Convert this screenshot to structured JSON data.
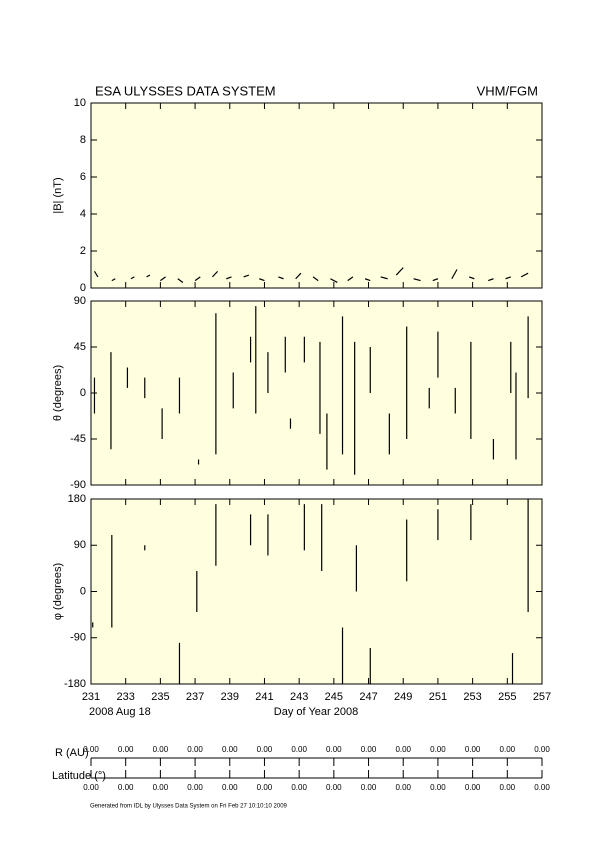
{
  "chart_data": [
    {
      "type": "line",
      "title": "ESA ULYSSES DATA SYSTEM",
      "subtitle": "VHM/FGM",
      "ylabel": "|B| (nT)",
      "background": "#ffffe0",
      "xlim": [
        231,
        257
      ],
      "ylim": [
        0,
        10
      ],
      "yticks": [
        0,
        2,
        4,
        6,
        8,
        10
      ],
      "x": [
        231.2,
        231.4,
        231.4,
        232.2,
        232.4,
        232.4,
        233.3,
        233.5,
        233.5,
        234.2,
        234.4,
        234.4,
        235.0,
        235.3,
        235.3,
        236.0,
        236.3,
        236.3,
        237.0,
        237.3,
        237.3,
        238.0,
        238.3,
        238.3,
        238.8,
        239.1,
        239.1,
        239.8,
        240.1,
        240.1,
        240.7,
        241.0,
        241.0,
        241.8,
        242.1,
        242.1,
        242.8,
        243.1,
        243.1,
        243.8,
        244.1,
        244.1,
        244.8,
        245.2,
        245.2,
        245.8,
        246.1,
        246.1,
        246.8,
        247.1,
        247.1,
        247.7,
        248.1,
        248.1,
        248.6,
        249.0,
        249.0,
        249.6,
        250.0,
        250.0,
        250.7,
        251.0,
        251.0,
        251.8,
        252.1,
        252.1,
        252.8,
        253.1,
        253.1,
        253.9,
        254.2,
        254.2,
        254.9,
        255.2,
        255.2,
        255.8,
        256.2
      ],
      "series": [
        {
          "name": "|B|",
          "color": "#000000",
          "values": [
            0.9,
            0.6,
            null,
            0.4,
            0.5,
            null,
            0.5,
            0.6,
            null,
            0.6,
            0.7,
            null,
            0.4,
            0.6,
            null,
            0.5,
            0.3,
            null,
            0.4,
            0.6,
            null,
            0.6,
            0.9,
            null,
            0.5,
            0.6,
            null,
            0.6,
            0.7,
            null,
            0.5,
            0.4,
            null,
            0.6,
            0.5,
            null,
            0.5,
            0.8,
            null,
            0.6,
            0.4,
            null,
            0.5,
            0.3,
            null,
            0.4,
            0.6,
            null,
            0.5,
            0.4,
            null,
            0.6,
            0.5,
            null,
            0.7,
            1.1,
            null,
            0.5,
            0.4,
            null,
            0.4,
            0.5,
            null,
            0.5,
            1.0,
            null,
            0.6,
            0.5,
            null,
            0.4,
            0.5,
            null,
            0.5,
            0.6,
            null,
            0.6,
            0.8
          ]
        }
      ]
    },
    {
      "type": "line",
      "ylabel": "θ (degrees)",
      "background": "#ffffe0",
      "xlim": [
        231,
        257
      ],
      "ylim": [
        -90,
        90
      ],
      "yticks": [
        -90,
        -45,
        0,
        45,
        90
      ],
      "x": [
        231.2,
        231.2,
        231.2,
        232.15,
        232.15,
        232.15,
        233.1,
        233.1,
        233.1,
        234.1,
        234.1,
        234.1,
        235.1,
        235.1,
        235.1,
        236.1,
        236.1,
        236.1,
        237.2,
        237.2,
        237.2,
        238.2,
        238.2,
        238.2,
        239.2,
        239.2,
        239.2,
        240.2,
        240.2,
        240.2,
        240.5,
        240.5,
        240.5,
        241.2,
        241.2,
        241.2,
        242.2,
        242.2,
        242.2,
        242.5,
        242.5,
        242.5,
        243.3,
        243.3,
        243.3,
        244.2,
        244.2,
        244.2,
        244.6,
        244.6,
        244.6,
        245.5,
        245.5,
        245.5,
        246.2,
        246.2,
        246.2,
        247.1,
        247.1,
        247.1,
        248.2,
        248.2,
        248.2,
        249.2,
        249.2,
        249.2,
        250.5,
        250.5,
        250.5,
        251.0,
        251.0,
        251.0,
        252.0,
        252.0,
        252.0,
        252.9,
        252.9,
        252.9,
        254.2,
        254.2,
        254.2,
        255.2,
        255.2,
        255.2,
        255.5,
        255.5,
        255.5,
        256.2,
        256.2
      ],
      "series": [
        {
          "name": "θ",
          "color": "#000000",
          "values": [
            -20,
            15,
            null,
            -55,
            40,
            null,
            5,
            25,
            null,
            -5,
            15,
            null,
            -45,
            -15,
            null,
            -20,
            15,
            null,
            -70,
            -65,
            null,
            -60,
            78,
            null,
            -15,
            20,
            null,
            30,
            55,
            null,
            -20,
            85,
            null,
            0,
            40,
            null,
            20,
            55,
            null,
            -35,
            -25,
            null,
            30,
            55,
            null,
            -40,
            50,
            null,
            -75,
            -20,
            null,
            -60,
            75,
            null,
            -80,
            50,
            null,
            0,
            45,
            null,
            -60,
            -20,
            null,
            -45,
            65,
            null,
            -15,
            5,
            null,
            15,
            60,
            null,
            -20,
            5,
            null,
            -45,
            50,
            null,
            -65,
            -45,
            null,
            0,
            50,
            null,
            -65,
            20,
            null,
            -5,
            75
          ]
        }
      ]
    },
    {
      "type": "line",
      "ylabel": "φ (degrees)",
      "xlabel": "Day of Year 2008",
      "annotation": "2008 Aug 18",
      "background": "#ffffe0",
      "xlim": [
        231,
        257
      ],
      "ylim": [
        -180,
        180
      ],
      "yticks": [
        -180,
        -90,
        0,
        90,
        180
      ],
      "xticks": [
        231,
        233,
        235,
        237,
        239,
        241,
        243,
        245,
        247,
        249,
        251,
        253,
        255,
        257
      ],
      "x": [
        231.1,
        231.1,
        231.1,
        232.2,
        232.2,
        232.2,
        234.1,
        234.1,
        234.1,
        236.1,
        236.1,
        236.1,
        237.1,
        237.1,
        237.1,
        238.2,
        238.2,
        238.2,
        240.2,
        240.2,
        240.2,
        241.2,
        241.2,
        241.2,
        243.3,
        243.3,
        243.3,
        244.3,
        244.3,
        244.3,
        245.5,
        245.5,
        245.5,
        246.3,
        246.3,
        246.3,
        247.1,
        247.1,
        247.1,
        249.2,
        249.2,
        249.2,
        251.0,
        251.0,
        251.0,
        252.9,
        252.9,
        252.9,
        255.3,
        255.3,
        255.3,
        256.2,
        256.2
      ],
      "series": [
        {
          "name": "φ",
          "color": "#000000",
          "values": [
            -70,
            -60,
            null,
            -70,
            110,
            null,
            80,
            90,
            null,
            -180,
            -100,
            null,
            -40,
            40,
            null,
            50,
            170,
            null,
            90,
            150,
            null,
            70,
            150,
            null,
            80,
            170,
            null,
            40,
            170,
            null,
            -180,
            -70,
            null,
            0,
            90,
            null,
            -180,
            -110,
            null,
            20,
            140,
            null,
            100,
            160,
            null,
            100,
            170,
            null,
            -180,
            -120,
            null,
            -40,
            180
          ]
        }
      ]
    }
  ],
  "orbit": {
    "r_label": "R (AU)",
    "r_values": [
      "0.00",
      "0.00",
      "0.00",
      "0.00",
      "0.00",
      "0.00",
      "0.00",
      "0.00",
      "0.00",
      "0.00",
      "0.00",
      "0.00",
      "0.00",
      "0.00"
    ],
    "lat_label": "Latitude (°)",
    "lat_values": [
      "0.00",
      "0.00",
      "0.00",
      "0.00",
      "0.00",
      "0.00",
      "0.00",
      "0.00",
      "0.00",
      "0.00",
      "0.00",
      "0.00",
      "0.00",
      "0.00"
    ]
  },
  "footer": "Generated from IDL by Ulysses Data System on Fri Feb 27 10:10:10 2009"
}
